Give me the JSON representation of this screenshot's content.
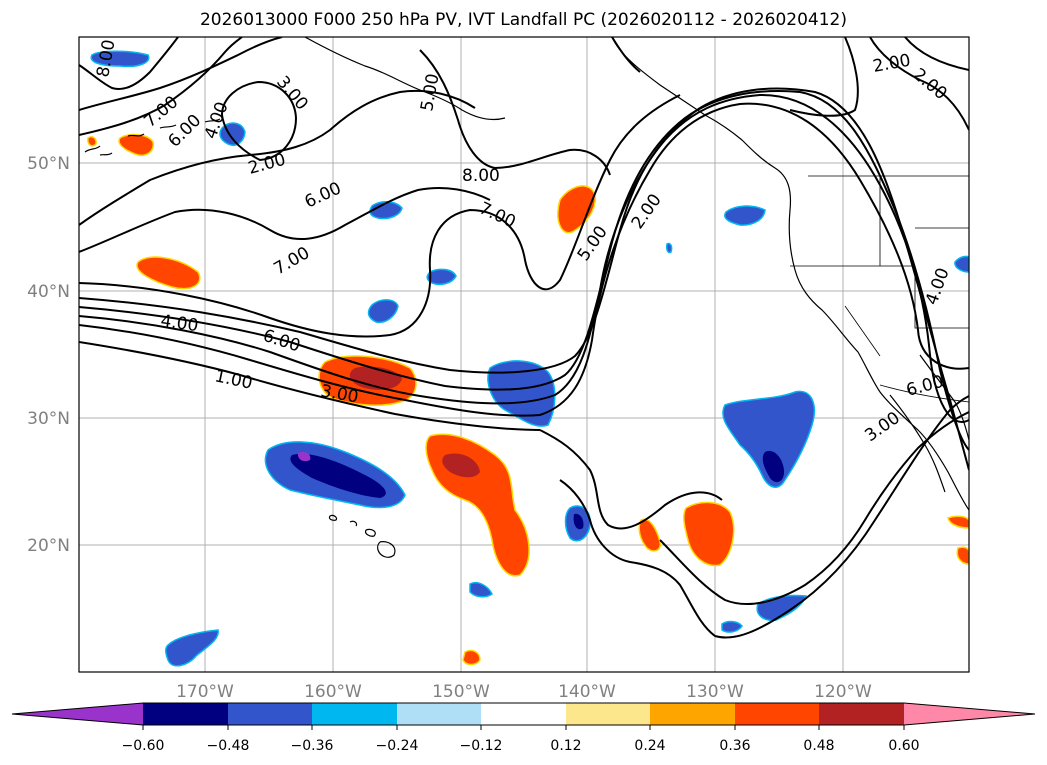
{
  "title": "2026013000 F000 250 hPa PV, IVT Landfall PC (2026020112 - 2026020412)",
  "map": {
    "lon_labels": [
      "170°W",
      "160°W",
      "150°W",
      "140°W",
      "130°W",
      "120°W"
    ],
    "lat_labels": [
      "50°N",
      "40°N",
      "30°N",
      "20°N"
    ],
    "gridlines": true
  },
  "contour_labels": [
    "8.00",
    "3.00",
    "5.00",
    "2.00",
    "2.00",
    "7.00",
    "6.00",
    "4.00",
    "2.00",
    "8.00",
    "6.00",
    "7.00",
    "7.00",
    "5.00",
    "2.00",
    "4.00",
    "6.00",
    "4.00",
    "1.00",
    "3.00",
    "6.00",
    "3.00"
  ],
  "colorbar": {
    "ticks": [
      "−0.60",
      "−0.48",
      "−0.36",
      "−0.24",
      "−0.12",
      "0.12",
      "0.24",
      "0.36",
      "0.48",
      "0.60"
    ],
    "colors": [
      "#9933cc",
      "#000080",
      "#3355cc",
      "#00b7f0",
      "#aedff7",
      "#ffffff",
      "#fde78c",
      "#ffa500",
      "#ff4500",
      "#b22222",
      "#ff88a8"
    ],
    "extend": "both"
  }
}
